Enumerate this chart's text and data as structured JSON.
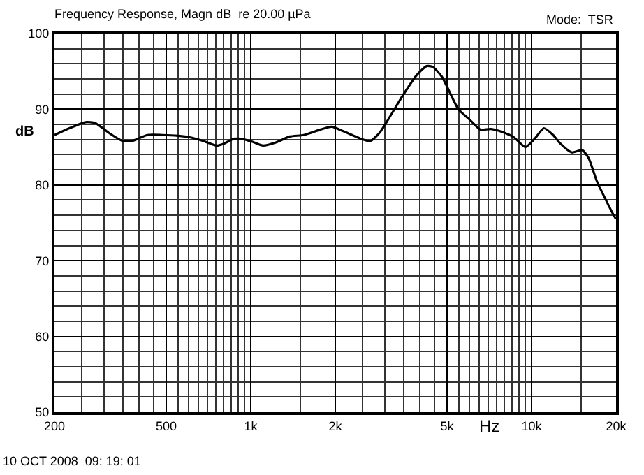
{
  "chart_data": {
    "type": "line",
    "title": "Frequency Response, Magn dB  re 20.00 µPa",
    "xlabel": "Hz",
    "ylabel": "dB",
    "annotations": [
      "Mode:  TSR",
      "10 OCT 2008  09: 19: 01"
    ],
    "log": "x",
    "grid": true,
    "xlim": [
      200,
      20000
    ],
    "ylim": [
      50,
      100
    ],
    "xticks": [
      200,
      500,
      {
        "value": 1000,
        "label": "1k"
      },
      {
        "value": 2000,
        "label": "2k"
      },
      {
        "value": 5000,
        "label": "5k"
      },
      {
        "value": 10000,
        "label": "10k"
      },
      {
        "value": 20000,
        "label": "20k"
      }
    ],
    "yticks": [
      50,
      60,
      70,
      80,
      90,
      100
    ],
    "x": [
      200,
      226,
      258,
      279,
      312,
      350,
      378,
      428,
      484,
      551,
      606,
      679,
      756,
      807,
      870,
      922,
      1015,
      1107,
      1228,
      1377,
      1544,
      1764,
      1942,
      2136,
      2471,
      2666,
      2876,
      3046,
      3477,
      3897,
      4233,
      4446,
      4792,
      5491,
      6034,
      6585,
      7158,
      7876,
      8653,
      9506,
      10260,
      11066,
      11936,
      12640,
      13895,
      15157,
      15992,
      17131,
      19546,
      20000
    ],
    "series": [
      {
        "color": "#000000",
        "values": [
          86.6,
          87.5,
          88.3,
          88.2,
          86.9,
          85.8,
          85.8,
          86.6,
          86.6,
          86.5,
          86.3,
          85.8,
          85.2,
          85.5,
          86.1,
          86.1,
          85.7,
          85.2,
          85.6,
          86.4,
          86.6,
          87.3,
          87.7,
          87.1,
          86.1,
          85.8,
          86.9,
          88.3,
          91.8,
          94.5,
          95.7,
          95.6,
          94.3,
          90.0,
          88.6,
          87.3,
          87.4,
          87.0,
          86.3,
          85.0,
          86.1,
          87.5,
          86.6,
          85.5,
          84.3,
          84.6,
          83.5,
          80.4,
          76.1,
          75.5
        ]
      }
    ]
  }
}
